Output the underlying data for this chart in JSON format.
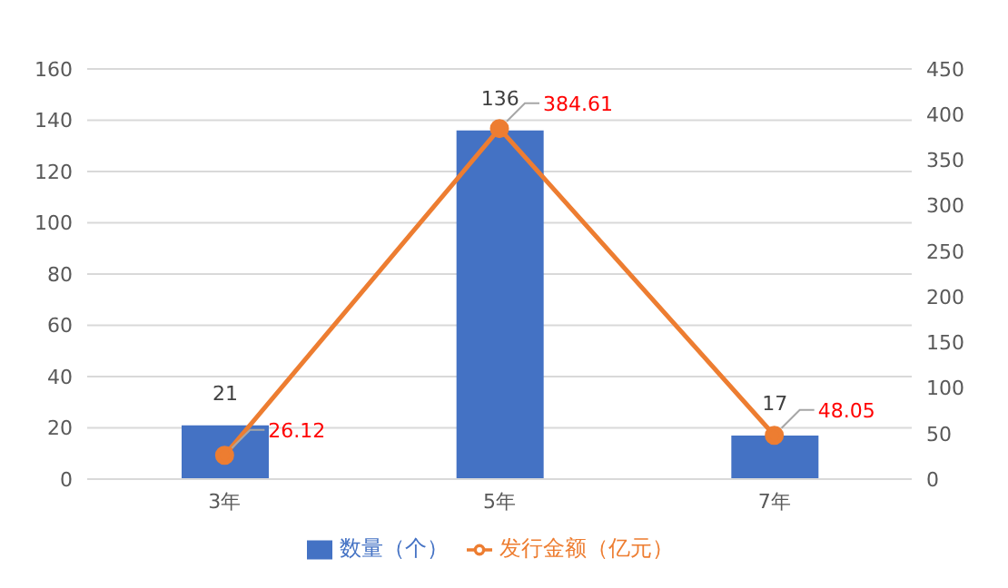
{
  "chart_data": {
    "type": "bar",
    "categories": [
      "3年",
      "5年",
      "7年"
    ],
    "series": [
      {
        "name": "数量（个）",
        "color": "#4472c4",
        "values": [
          21,
          136,
          17
        ]
      },
      {
        "name": "发行金额（亿元）",
        "type": "line",
        "axis": "y2",
        "color": "#ed7d31",
        "values": [
          26.12,
          384.61,
          48.05
        ]
      }
    ],
    "ylim": [
      0,
      160
    ],
    "yticks": [
      0,
      20,
      40,
      60,
      80,
      100,
      120,
      140,
      160
    ],
    "y2lim": [
      0,
      450
    ],
    "y2ticks": [
      0,
      50,
      100,
      150,
      200,
      250,
      300,
      350,
      400,
      450
    ],
    "grid": "y",
    "legend": "bottom",
    "marker": "circle",
    "line_style": "solid",
    "data_labels": true
  }
}
